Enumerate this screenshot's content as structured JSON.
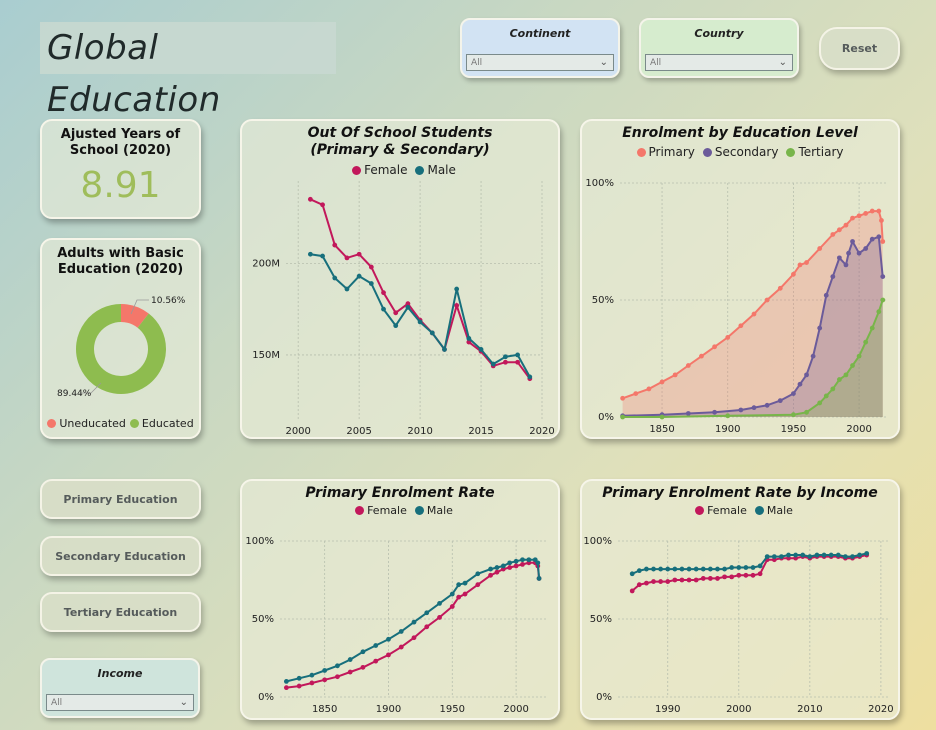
{
  "header": {
    "title": "Global Education",
    "reset_label": "Reset"
  },
  "filters": {
    "continent": {
      "label": "Continent",
      "value": "All"
    },
    "country": {
      "label": "Country",
      "value": "All"
    },
    "income": {
      "label": "Income",
      "value": "All"
    }
  },
  "kpi": {
    "label": "Ajusted Years of School (2020)",
    "value": "8.91"
  },
  "nav": {
    "primary": "Primary Education",
    "secondary": "Secondary Education",
    "tertiary": "Tertiary Education"
  },
  "colors": {
    "female": "#c2185b",
    "male": "#176f7c",
    "primary": "#f4776a",
    "secondary": "#6b5b9a",
    "tertiary": "#78b54a",
    "uneducated": "#f4776a",
    "educated": "#8ebc4f",
    "kpi_value": "#9fbd5b"
  },
  "charts": {
    "donut": {
      "title": "Adults with Basic Education (2020)",
      "legend": [
        "Uneducated",
        "Educated"
      ]
    },
    "out_of_school": {
      "title": "Out Of School Students (Primary & Secondary)",
      "legend": [
        "Female",
        "Male"
      ]
    },
    "enrolment_level": {
      "title": "Enrolment by Education Level",
      "legend": [
        "Primary",
        "Secondary",
        "Tertiary"
      ]
    },
    "primary_rate": {
      "title": "Primary Enrolment Rate",
      "legend": [
        "Female",
        "Male"
      ]
    },
    "primary_income": {
      "title": "Primary Enrolment Rate by Income",
      "legend": [
        "Female",
        "Male"
      ]
    }
  },
  "chart_data": [
    {
      "type": "pie",
      "title": "Adults with Basic Education (2020)",
      "categories": [
        "Uneducated",
        "Educated"
      ],
      "values": [
        10.56,
        89.44
      ],
      "labels": [
        "10.56%",
        "89.44%"
      ]
    },
    {
      "type": "line",
      "title": "Out Of School Students (Primary & Secondary)",
      "xlabel": "",
      "ylabel": "",
      "xlim": [
        1999,
        2020
      ],
      "ylim": [
        115,
        245
      ],
      "xticks": [
        "2000",
        "2005",
        "2010",
        "2015",
        "2020"
      ],
      "yticks": [
        "150M",
        "200M"
      ],
      "x": [
        2001,
        2002,
        2003,
        2004,
        2005,
        2006,
        2007,
        2008,
        2009,
        2010,
        2011,
        2012,
        2013,
        2014,
        2015,
        2016,
        2017,
        2018,
        2019
      ],
      "series": [
        {
          "name": "Female",
          "values": [
            235,
            232,
            210,
            203,
            205,
            198,
            184,
            173,
            178,
            169,
            162,
            153,
            177,
            157,
            152,
            144,
            146,
            146,
            137
          ]
        },
        {
          "name": "Male",
          "values": [
            205,
            204,
            192,
            186,
            193,
            189,
            175,
            166,
            176,
            168,
            162,
            153,
            186,
            159,
            153,
            145,
            149,
            150,
            138
          ]
        }
      ]
    },
    {
      "type": "area",
      "title": "Enrolment by Education Level",
      "xlabel": "",
      "ylabel": "",
      "xlim": [
        1818,
        2022
      ],
      "ylim": [
        0,
        100
      ],
      "xticks": [
        "1850",
        "1900",
        "1950",
        "2000"
      ],
      "yticks": [
        "0%",
        "50%",
        "100%"
      ],
      "series": [
        {
          "name": "Primary",
          "points": [
            [
              1820,
              8
            ],
            [
              1830,
              10
            ],
            [
              1840,
              12
            ],
            [
              1850,
              15
            ],
            [
              1860,
              18
            ],
            [
              1870,
              22
            ],
            [
              1880,
              26
            ],
            [
              1890,
              30
            ],
            [
              1900,
              34
            ],
            [
              1910,
              39
            ],
            [
              1920,
              44
            ],
            [
              1930,
              50
            ],
            [
              1940,
              55
            ],
            [
              1950,
              61
            ],
            [
              1955,
              65
            ],
            [
              1960,
              66
            ],
            [
              1970,
              72
            ],
            [
              1980,
              78
            ],
            [
              1985,
              80
            ],
            [
              1990,
              82
            ],
            [
              1995,
              85
            ],
            [
              2000,
              86
            ],
            [
              2005,
              87
            ],
            [
              2010,
              88
            ],
            [
              2015,
              88
            ],
            [
              2017,
              84
            ],
            [
              2018,
              75
            ]
          ]
        },
        {
          "name": "Secondary",
          "points": [
            [
              1820,
              0.5
            ],
            [
              1850,
              1
            ],
            [
              1870,
              1.5
            ],
            [
              1890,
              2
            ],
            [
              1910,
              3
            ],
            [
              1920,
              4
            ],
            [
              1930,
              5
            ],
            [
              1940,
              7
            ],
            [
              1950,
              10
            ],
            [
              1955,
              14
            ],
            [
              1960,
              18
            ],
            [
              1965,
              26
            ],
            [
              1970,
              38
            ],
            [
              1975,
              52
            ],
            [
              1980,
              60
            ],
            [
              1985,
              68
            ],
            [
              1990,
              65
            ],
            [
              1992,
              70
            ],
            [
              1995,
              75
            ],
            [
              2000,
              70
            ],
            [
              2005,
              72
            ],
            [
              2010,
              76
            ],
            [
              2015,
              77
            ],
            [
              2018,
              60
            ]
          ]
        },
        {
          "name": "Tertiary",
          "points": [
            [
              1820,
              0
            ],
            [
              1850,
              0
            ],
            [
              1900,
              0.5
            ],
            [
              1950,
              1
            ],
            [
              1960,
              2
            ],
            [
              1970,
              6
            ],
            [
              1975,
              9
            ],
            [
              1980,
              12
            ],
            [
              1985,
              16
            ],
            [
              1990,
              18
            ],
            [
              1995,
              22
            ],
            [
              2000,
              26
            ],
            [
              2005,
              32
            ],
            [
              2010,
              38
            ],
            [
              2015,
              45
            ],
            [
              2018,
              50
            ]
          ]
        }
      ]
    },
    {
      "type": "line",
      "title": "Primary Enrolment Rate",
      "xlabel": "",
      "ylabel": "",
      "xlim": [
        1815,
        2025
      ],
      "ylim": [
        0,
        100
      ],
      "xticks": [
        "1850",
        "1900",
        "1950",
        "2000"
      ],
      "yticks": [
        "0%",
        "50%",
        "100%"
      ],
      "series": [
        {
          "name": "Female",
          "points": [
            [
              1820,
              6
            ],
            [
              1830,
              7
            ],
            [
              1840,
              9
            ],
            [
              1850,
              11
            ],
            [
              1860,
              13
            ],
            [
              1870,
              16
            ],
            [
              1880,
              19
            ],
            [
              1890,
              23
            ],
            [
              1900,
              27
            ],
            [
              1910,
              32
            ],
            [
              1920,
              38
            ],
            [
              1930,
              45
            ],
            [
              1940,
              51
            ],
            [
              1950,
              58
            ],
            [
              1955,
              64
            ],
            [
              1960,
              66
            ],
            [
              1970,
              72
            ],
            [
              1980,
              78
            ],
            [
              1985,
              80
            ],
            [
              1990,
              82
            ],
            [
              1995,
              83
            ],
            [
              2000,
              84
            ],
            [
              2005,
              85
            ],
            [
              2010,
              86
            ],
            [
              2015,
              86
            ],
            [
              2017,
              84
            ],
            [
              2018,
              76
            ]
          ]
        },
        {
          "name": "Male",
          "points": [
            [
              1820,
              10
            ],
            [
              1830,
              12
            ],
            [
              1840,
              14
            ],
            [
              1850,
              17
            ],
            [
              1860,
              20
            ],
            [
              1870,
              24
            ],
            [
              1880,
              29
            ],
            [
              1890,
              33
            ],
            [
              1900,
              37
            ],
            [
              1910,
              42
            ],
            [
              1920,
              48
            ],
            [
              1930,
              54
            ],
            [
              1940,
              60
            ],
            [
              1950,
              66
            ],
            [
              1955,
              72
            ],
            [
              1960,
              73
            ],
            [
              1970,
              79
            ],
            [
              1980,
              82
            ],
            [
              1985,
              83
            ],
            [
              1990,
              84
            ],
            [
              1995,
              86
            ],
            [
              2000,
              87
            ],
            [
              2005,
              88
            ],
            [
              2010,
              88
            ],
            [
              2015,
              88
            ],
            [
              2017,
              86
            ],
            [
              2018,
              76
            ]
          ]
        }
      ]
    },
    {
      "type": "line",
      "title": "Primary Enrolment Rate by Income",
      "xlabel": "",
      "ylabel": "",
      "xlim": [
        1983,
        2021
      ],
      "ylim": [
        0,
        100
      ],
      "xticks": [
        "1990",
        "2000",
        "2010",
        "2020"
      ],
      "yticks": [
        "0%",
        "50%",
        "100%"
      ],
      "x": [
        1985,
        1986,
        1987,
        1988,
        1989,
        1990,
        1991,
        1992,
        1993,
        1994,
        1995,
        1996,
        1997,
        1998,
        1999,
        2000,
        2001,
        2002,
        2003,
        2004,
        2005,
        2006,
        2007,
        2008,
        2009,
        2010,
        2011,
        2012,
        2013,
        2014,
        2015,
        2016,
        2017,
        2018
      ],
      "series": [
        {
          "name": "Female",
          "values": [
            68,
            72,
            73,
            74,
            74,
            74,
            75,
            75,
            75,
            75,
            76,
            76,
            76,
            77,
            77,
            78,
            78,
            78,
            79,
            88,
            88,
            89,
            89,
            89,
            90,
            89,
            90,
            90,
            90,
            90,
            89,
            89,
            90,
            91
          ]
        },
        {
          "name": "Male",
          "values": [
            79,
            81,
            82,
            82,
            82,
            82,
            82,
            82,
            82,
            82,
            82,
            82,
            82,
            82,
            83,
            83,
            83,
            83,
            84,
            90,
            90,
            90,
            91,
            91,
            91,
            90,
            91,
            91,
            91,
            91,
            90,
            90,
            91,
            92
          ]
        }
      ]
    }
  ]
}
